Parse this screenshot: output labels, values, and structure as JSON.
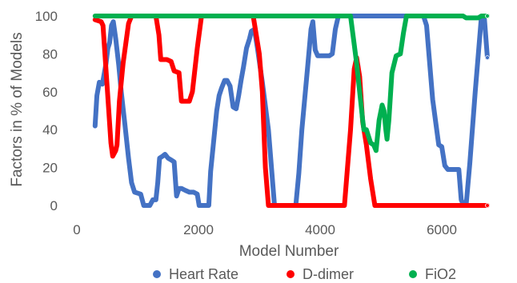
{
  "chart_data": {
    "type": "line",
    "title": "",
    "xlabel": "Model Number",
    "ylabel": "Factors in % of Models",
    "xlim": [
      0,
      7000
    ],
    "ylim": [
      0,
      100
    ],
    "xticks": [
      0,
      2000,
      4000,
      6000
    ],
    "yticks": [
      0,
      20,
      40,
      60,
      80,
      100
    ],
    "grid": false,
    "legend_position": "bottom",
    "series": [
      {
        "name": "Heart Rate",
        "color": "#4472C4",
        "points": [
          [
            300,
            42
          ],
          [
            330,
            58
          ],
          [
            370,
            65
          ],
          [
            420,
            64
          ],
          [
            480,
            75
          ],
          [
            510,
            83
          ],
          [
            540,
            86
          ],
          [
            570,
            95
          ],
          [
            600,
            97
          ],
          [
            640,
            88
          ],
          [
            690,
            74
          ],
          [
            730,
            60
          ],
          [
            790,
            43
          ],
          [
            850,
            25
          ],
          [
            900,
            12
          ],
          [
            950,
            7
          ],
          [
            1050,
            6
          ],
          [
            1100,
            0
          ],
          [
            1150,
            0
          ],
          [
            1200,
            0
          ],
          [
            1250,
            3
          ],
          [
            1300,
            3
          ],
          [
            1330,
            12
          ],
          [
            1360,
            25
          ],
          [
            1410,
            26
          ],
          [
            1450,
            27
          ],
          [
            1500,
            25
          ],
          [
            1550,
            24
          ],
          [
            1600,
            23
          ],
          [
            1640,
            5
          ],
          [
            1680,
            9
          ],
          [
            1720,
            9
          ],
          [
            1780,
            8
          ],
          [
            1850,
            7
          ],
          [
            1920,
            7
          ],
          [
            1980,
            6
          ],
          [
            2010,
            0
          ],
          [
            2050,
            0
          ],
          [
            2100,
            0
          ],
          [
            2170,
            0
          ],
          [
            2200,
            18
          ],
          [
            2300,
            50
          ],
          [
            2340,
            58
          ],
          [
            2380,
            62
          ],
          [
            2430,
            66
          ],
          [
            2470,
            66
          ],
          [
            2520,
            63
          ],
          [
            2570,
            52
          ],
          [
            2620,
            51
          ],
          [
            2660,
            58
          ],
          [
            2700,
            66
          ],
          [
            2740,
            73
          ],
          [
            2790,
            83
          ],
          [
            2840,
            88
          ],
          [
            2870,
            92
          ],
          [
            2920,
            93
          ],
          [
            2970,
            83
          ],
          [
            3050,
            65
          ],
          [
            3150,
            40
          ],
          [
            3250,
            0
          ],
          [
            3300,
            0
          ],
          [
            3600,
            0
          ],
          [
            3650,
            17
          ],
          [
            3700,
            40
          ],
          [
            3800,
            75
          ],
          [
            3850,
            93
          ],
          [
            3880,
            97
          ],
          [
            3920,
            82
          ],
          [
            3960,
            79
          ],
          [
            4030,
            79
          ],
          [
            4150,
            79
          ],
          [
            4200,
            80
          ],
          [
            4250,
            93
          ],
          [
            4300,
            100
          ],
          [
            4500,
            100
          ],
          [
            5000,
            100
          ],
          [
            5700,
            100
          ],
          [
            5750,
            95
          ],
          [
            5850,
            56
          ],
          [
            5950,
            32
          ],
          [
            6000,
            31
          ],
          [
            6050,
            21
          ],
          [
            6100,
            19
          ],
          [
            6200,
            19
          ],
          [
            6280,
            19
          ],
          [
            6320,
            3
          ],
          [
            6360,
            0
          ],
          [
            6400,
            0
          ],
          [
            6460,
            22
          ],
          [
            6550,
            60
          ],
          [
            6650,
            99
          ],
          [
            6700,
            99
          ],
          [
            6750,
            78
          ]
        ]
      },
      {
        "name": "D-dimer",
        "color": "#FF0000",
        "points": [
          [
            300,
            98
          ],
          [
            400,
            97
          ],
          [
            430,
            95
          ],
          [
            500,
            62
          ],
          [
            560,
            33
          ],
          [
            590,
            26
          ],
          [
            640,
            29
          ],
          [
            660,
            32
          ],
          [
            700,
            55
          ],
          [
            760,
            75
          ],
          [
            850,
            96
          ],
          [
            900,
            100
          ],
          [
            1300,
            100
          ],
          [
            1350,
            90
          ],
          [
            1380,
            77
          ],
          [
            1420,
            77
          ],
          [
            1480,
            77
          ],
          [
            1550,
            76
          ],
          [
            1600,
            71
          ],
          [
            1680,
            70
          ],
          [
            1720,
            55
          ],
          [
            1780,
            55
          ],
          [
            1850,
            55
          ],
          [
            1900,
            60
          ],
          [
            1980,
            83
          ],
          [
            2050,
            100
          ],
          [
            2900,
            100
          ],
          [
            3000,
            80
          ],
          [
            3050,
            60
          ],
          [
            3100,
            20
          ],
          [
            3150,
            0
          ],
          [
            4400,
            0
          ],
          [
            4450,
            20
          ],
          [
            4500,
            40
          ],
          [
            4560,
            72
          ],
          [
            4600,
            78
          ],
          [
            4650,
            68
          ],
          [
            4700,
            44
          ],
          [
            4760,
            32
          ],
          [
            4830,
            14
          ],
          [
            4900,
            0
          ],
          [
            6750,
            0
          ]
        ]
      },
      {
        "name": "FiO2",
        "color": "#00B050",
        "points": [
          [
            300,
            100
          ],
          [
            4500,
            100
          ],
          [
            4560,
            85
          ],
          [
            4600,
            75
          ],
          [
            4650,
            60
          ],
          [
            4700,
            45
          ],
          [
            4720,
            40
          ],
          [
            4760,
            40
          ],
          [
            4830,
            33
          ],
          [
            4880,
            32
          ],
          [
            4920,
            29
          ],
          [
            4970,
            45
          ],
          [
            5020,
            53
          ],
          [
            5050,
            50
          ],
          [
            5080,
            40
          ],
          [
            5100,
            35
          ],
          [
            5130,
            45
          ],
          [
            5180,
            70
          ],
          [
            5250,
            79
          ],
          [
            5320,
            80
          ],
          [
            5370,
            91
          ],
          [
            5420,
            100
          ],
          [
            6350,
            100
          ],
          [
            6400,
            99
          ],
          [
            6600,
            99
          ],
          [
            6650,
            100
          ],
          [
            6750,
            100
          ]
        ]
      }
    ]
  }
}
